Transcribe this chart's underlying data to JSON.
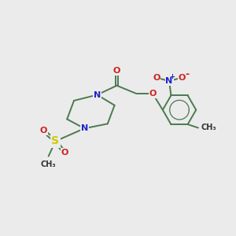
{
  "bg_color": "#ebebeb",
  "bond_color": "#4a7a50",
  "atom_colors": {
    "N": "#2222cc",
    "O": "#cc2222",
    "S": "#cccc00",
    "C": "#000000",
    "CH3": "#333333"
  },
  "figsize": [
    3.0,
    3.0
  ],
  "dpi": 100,
  "xlim": [
    0,
    10
  ],
  "ylim": [
    0,
    10
  ]
}
